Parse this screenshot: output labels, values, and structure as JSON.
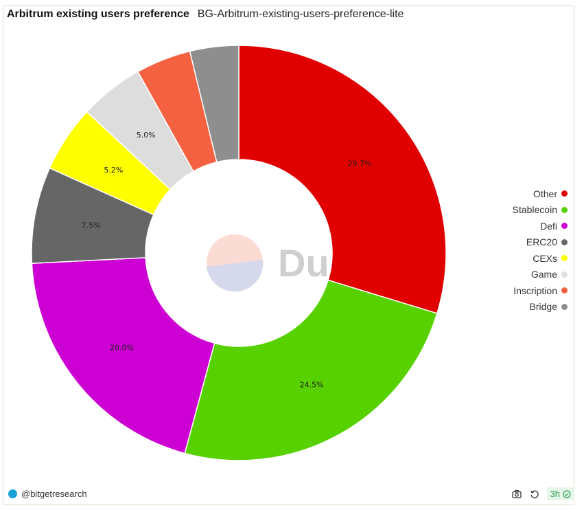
{
  "header": {
    "title": "Arbitrum existing users preference",
    "subtitle": "BG-Arbitrum-existing-users-preference-lite"
  },
  "watermark": {
    "text": "Dune"
  },
  "chart_data": {
    "type": "pie",
    "donut": true,
    "title": "Arbitrum existing users preference",
    "legend_position": "right",
    "series": [
      {
        "name": "Other",
        "value": 29.7,
        "label": "29.7%",
        "color": "#e10000"
      },
      {
        "name": "Stablecoin",
        "value": 24.5,
        "label": "24.5%",
        "color": "#58d100"
      },
      {
        "name": "Defi",
        "value": 20.0,
        "label": "20.0%",
        "color": "#cc00d3"
      },
      {
        "name": "ERC20",
        "value": 7.5,
        "label": "7.5%",
        "color": "#666666"
      },
      {
        "name": "CEXs",
        "value": 5.2,
        "label": "5.2%",
        "color": "#ffff00"
      },
      {
        "name": "Game",
        "value": 5.0,
        "label": "5.0%",
        "color": "#dddddd"
      },
      {
        "name": "Inscription",
        "value": 4.3,
        "label": "",
        "color": "#f56242"
      },
      {
        "name": "Bridge",
        "value": 3.8,
        "label": "",
        "color": "#8e8e8e"
      }
    ]
  },
  "footer": {
    "author": "@bitgetresearch",
    "age": "3h"
  },
  "icons": {
    "camera": "camera-icon",
    "refresh": "refresh-icon",
    "check": "check-circle-icon"
  }
}
